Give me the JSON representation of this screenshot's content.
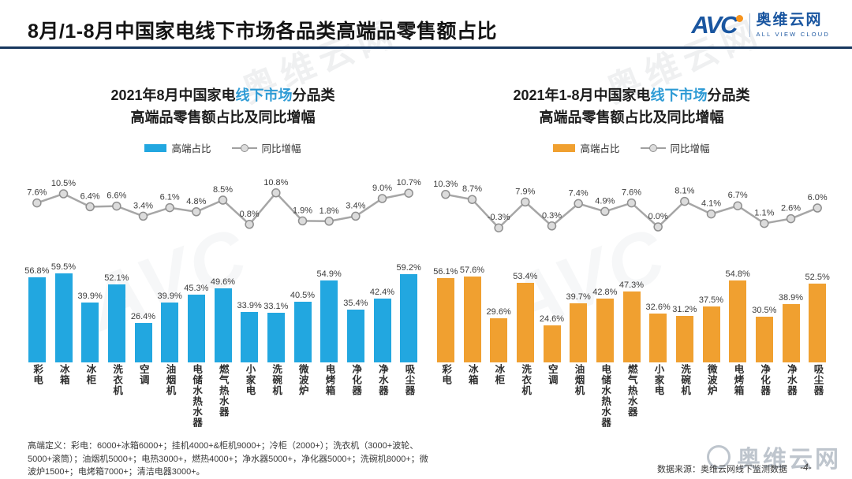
{
  "header": {
    "title": "8月/1-8月中国家电线下市场各品类高端品零售额占比",
    "logo": {
      "mark": "AVC",
      "name": "奥维云网",
      "tagline": "ALL VIEW CLOUD"
    }
  },
  "watermark": {
    "brand": "奥维云网",
    "mark": "AVC"
  },
  "ui": {
    "charts": [
      {
        "title_a": "2021年8月中国家电",
        "title_b": "线下市场",
        "title_c": "分品类",
        "title_line2": "高端品零售额占比及同比增幅",
        "legend_bar": "高端占比",
        "legend_line": "同比增幅"
      },
      {
        "title_a": "2021年1-8月中国家电",
        "title_b": "线下市场",
        "title_c": "分品类",
        "title_line2": "高端品零售额占比及同比增幅",
        "legend_bar": "高端占比",
        "legend_line": "同比增幅"
      }
    ]
  },
  "footer": {
    "definition": "高端定义：彩电：6000+冰箱6000+；挂机4000+&柜机9000+；冷柜（2000+）；洗衣机（3000+波轮、5000+滚筒）；油烟机5000+；电热3000+，燃热4000+；净水器5000+，净化器5000+；洗碗机8000+；微波炉1500+；电烤箱7000+；清洁电器3000+。",
    "source": "数据来源：奥维云网线下监测数据",
    "page": "-4-"
  },
  "chart_data": [
    {
      "type": "bar",
      "title": "2021年8月中国家电线下市场分品类高端品零售额占比及同比增幅",
      "categories": [
        "彩电",
        "冰箱",
        "冰柜",
        "洗衣机",
        "空调",
        "油烟机",
        "电储水热水器",
        "燃气热水器",
        "小家电",
        "洗碗机",
        "微波炉",
        "电烤箱",
        "净化器",
        "净水器",
        "吸尘器"
      ],
      "series": [
        {
          "name": "高端占比",
          "type": "bar",
          "color": "#22A7E0",
          "values": [
            56.8,
            59.5,
            39.9,
            52.1,
            26.4,
            39.9,
            45.3,
            49.6,
            33.9,
            33.1,
            40.5,
            54.9,
            35.4,
            42.4,
            59.2
          ]
        },
        {
          "name": "同比增幅",
          "type": "line",
          "color": "#A6A6A6",
          "values": [
            7.6,
            10.5,
            6.4,
            6.6,
            3.4,
            6.1,
            4.8,
            8.5,
            0.8,
            10.8,
            1.9,
            1.8,
            3.4,
            9.0,
            10.7
          ]
        }
      ],
      "unit": "%",
      "ylim": [
        0,
        70
      ],
      "line_ylim": [
        -2,
        12
      ],
      "grid": false,
      "legend_position": "top"
    },
    {
      "type": "bar",
      "title": "2021年1-8月中国家电线下市场分品类高端品零售额占比及同比增幅",
      "categories": [
        "彩电",
        "冰箱",
        "冰柜",
        "洗衣机",
        "空调",
        "油烟机",
        "电储水热水器",
        "燃气热水器",
        "小家电",
        "洗碗机",
        "微波炉",
        "电烤箱",
        "净化器",
        "净水器",
        "吸尘器"
      ],
      "series": [
        {
          "name": "高端占比",
          "type": "bar",
          "color": "#F0A030",
          "values": [
            56.1,
            57.6,
            29.6,
            53.4,
            24.6,
            39.7,
            42.8,
            47.3,
            32.6,
            31.2,
            37.5,
            54.8,
            30.5,
            38.9,
            52.5
          ]
        },
        {
          "name": "同比增幅",
          "type": "line",
          "color": "#A6A6A6",
          "values": [
            10.3,
            8.7,
            -0.3,
            7.9,
            0.3,
            7.4,
            4.9,
            7.6,
            0.0,
            8.1,
            4.1,
            6.7,
            1.1,
            2.6,
            6.0
          ]
        }
      ],
      "unit": "%",
      "ylim": [
        0,
        70
      ],
      "line_ylim": [
        -2,
        12
      ],
      "grid": false,
      "legend_position": "top"
    }
  ]
}
